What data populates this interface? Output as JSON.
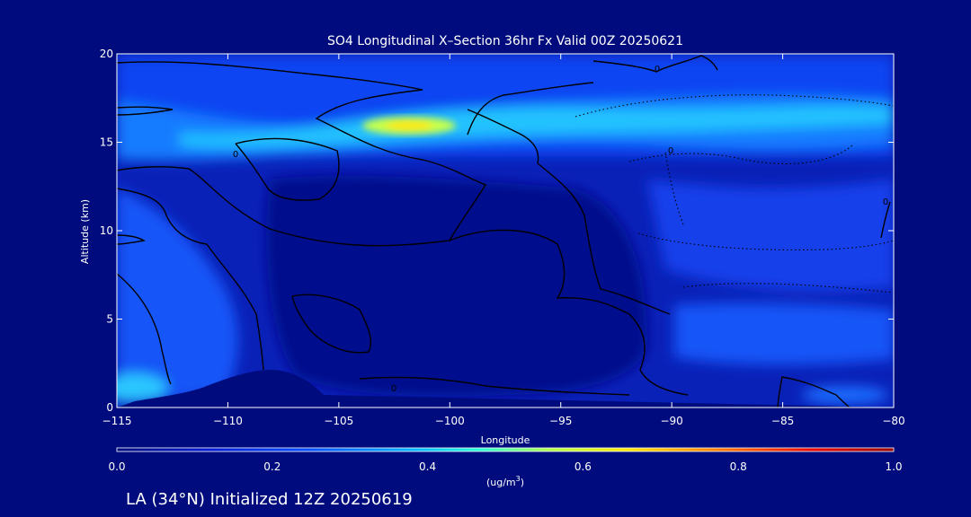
{
  "chart_data": {
    "type": "heatmap",
    "title": "SO4 Longitudinal X–Section 36hr  Fx Valid 00Z 20250621",
    "xlabel": "Longitude",
    "ylabel": "Altitude (km)",
    "xlim": [
      -115,
      -80
    ],
    "ylim": [
      0,
      20
    ],
    "x_ticks": [
      -115,
      -110,
      -105,
      -100,
      -95,
      -90,
      -85,
      -80
    ],
    "x_tick_labels": [
      "−115",
      "−110",
      "−105",
      "−100",
      "−95",
      "−90",
      "−85",
      "−80"
    ],
    "y_ticks": [
      0,
      5,
      10,
      15,
      20
    ],
    "y_tick_labels": [
      "0",
      "5",
      "10",
      "15",
      "20"
    ],
    "colorbar": {
      "label_prefix": "(ug/m",
      "label_sup": "3",
      "label_suffix": ")",
      "range": [
        0,
        1.0
      ],
      "ticks": [
        0.0,
        0.2,
        0.4,
        0.6,
        0.8,
        1.0
      ],
      "tick_labels": [
        "0.0",
        "0.2",
        "0.4",
        "0.6",
        "0.8",
        "1.0"
      ],
      "colors": [
        "#000c7e",
        "#0019d6",
        "#0050ff",
        "#00b4ff",
        "#2dffd2",
        "#b4ff46",
        "#ffe600",
        "#ff7800",
        "#e60000",
        "#960000"
      ]
    },
    "contour_labels": [
      "0",
      "0",
      "0",
      "0",
      "0"
    ],
    "grid": false,
    "legend": "none"
  },
  "footer": {
    "info": "LA (34°N) Initialized 12Z 20250619"
  },
  "colors": {
    "background": "#000c7e",
    "terrain": "#000c7e",
    "contour": "#000000",
    "text": "#ffffff"
  }
}
